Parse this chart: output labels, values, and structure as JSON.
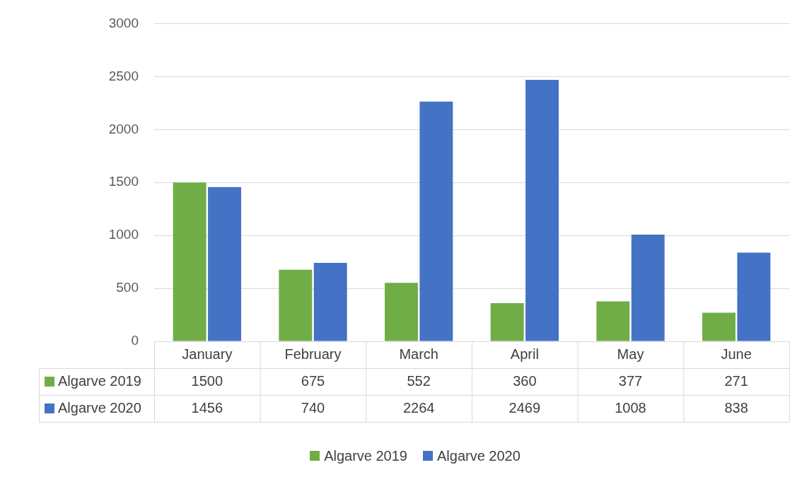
{
  "chart_data": {
    "type": "bar",
    "categories": [
      "January",
      "February",
      "March",
      "April",
      "May",
      "June"
    ],
    "series": [
      {
        "name": "Algarve 2019",
        "color": "#70ad47",
        "values": [
          1500,
          675,
          552,
          360,
          377,
          271
        ]
      },
      {
        "name": "Algarve 2020",
        "color": "#4472c4",
        "values": [
          1456,
          740,
          2264,
          2469,
          1008,
          838
        ]
      }
    ],
    "ylim": [
      0,
      3000
    ],
    "yticks": [
      0,
      500,
      1000,
      1500,
      2000,
      2500,
      3000
    ],
    "grid": "y",
    "legend": "bottom",
    "data_labels": true
  }
}
